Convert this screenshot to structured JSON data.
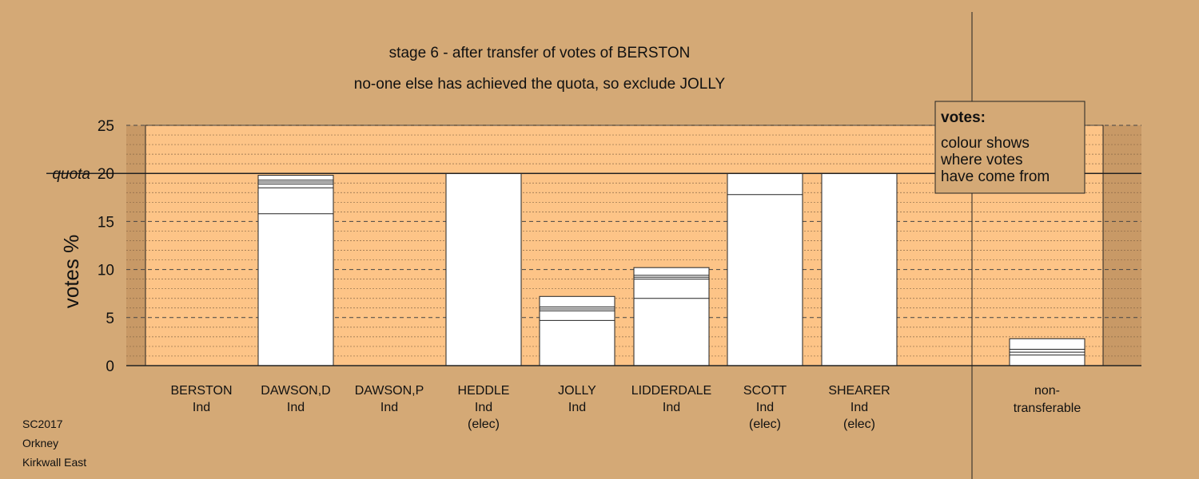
{
  "chart_data": {
    "type": "bar",
    "title": "stage 6 - after transfer of votes of BERSTON",
    "subtitle": "no-one else has achieved the quota, so exclude JOLLY",
    "ylabel": "votes %",
    "ylim": [
      0,
      25
    ],
    "yticks": [
      0,
      5,
      10,
      15,
      20,
      25
    ],
    "quota": 20,
    "quota_label": "quota",
    "categories": [
      {
        "name": "BERSTON",
        "party": "Ind",
        "status": "",
        "total": 0,
        "segments": []
      },
      {
        "name": "DAWSON,D",
        "party": "Ind",
        "status": "",
        "total": 19.8,
        "segments": [
          15.8,
          2.7,
          0.4,
          0.2,
          0.2,
          0.5
        ]
      },
      {
        "name": "DAWSON,P",
        "party": "Ind",
        "status": "",
        "total": 0,
        "segments": []
      },
      {
        "name": "HEDDLE",
        "party": "Ind",
        "status": "(elec)",
        "total": 20.0,
        "segments": [
          20.0
        ]
      },
      {
        "name": "JOLLY",
        "party": "Ind",
        "status": "",
        "total": 7.2,
        "segments": [
          4.7,
          1.0,
          0.2,
          0.2,
          1.1
        ]
      },
      {
        "name": "LIDDERDALE",
        "party": "Ind",
        "status": "",
        "total": 10.2,
        "segments": [
          7.0,
          2.0,
          0.2,
          0.2,
          0.8
        ]
      },
      {
        "name": "SCOTT",
        "party": "Ind",
        "status": "(elec)",
        "total": 20.0,
        "segments": [
          17.8,
          2.2
        ]
      },
      {
        "name": "SHEARER",
        "party": "Ind",
        "status": "(elec)",
        "total": 20.0,
        "segments": [
          20.0
        ]
      }
    ],
    "non_transferable": {
      "label_line1": "non-",
      "label_line2": "transferable",
      "total": 2.8,
      "segments": [
        1.1,
        0.3,
        0.3,
        1.1
      ]
    },
    "grid": true,
    "legend": {
      "title": "votes:",
      "lines": [
        "colour shows",
        "where votes",
        "have come from"
      ],
      "placement": "top-right"
    }
  },
  "footer": {
    "election": "SC2017",
    "council": "Orkney",
    "ward": "Kirkwall East"
  },
  "colors": {
    "background": "#d4a976",
    "plot_area": "#fdc487",
    "plot_margin": "#c89966",
    "bar_fill": "#ffffff",
    "line": "#222222"
  }
}
